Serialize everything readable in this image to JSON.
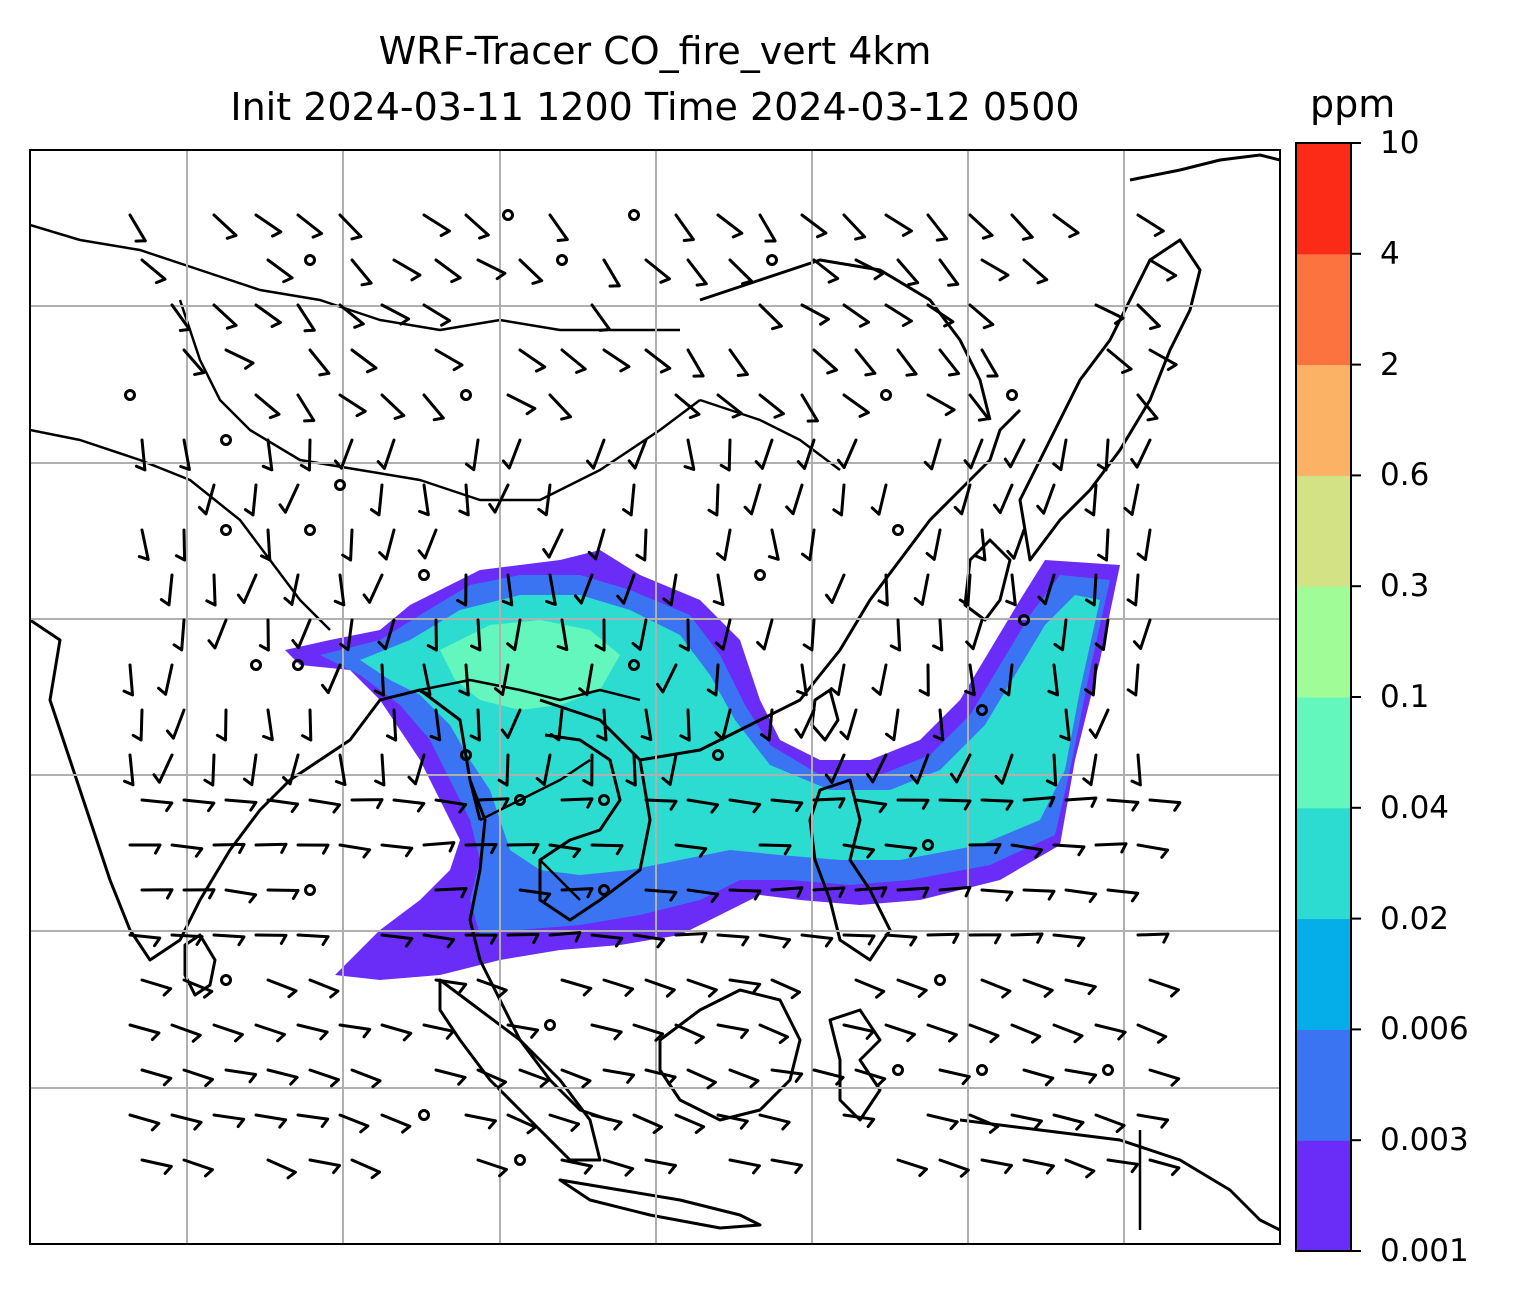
{
  "title_line1": "WRF-Tracer CO_fire_vert 4km",
  "title_line2": "Init 2024-03-11 1200 Time 2024-03-12 0500",
  "colorbar": {
    "unit": "ppm",
    "levels": [
      "0.001",
      "0.003",
      "0.006",
      "0.02",
      "0.04",
      "0.1",
      "0.3",
      "0.6",
      "2",
      "4",
      "10"
    ],
    "colors": [
      "#6a2cf7",
      "#3a74f2",
      "#05aee8",
      "#2ddcd0",
      "#63f7bd",
      "#9ffc96",
      "#d2e284",
      "#fcb265",
      "#fc7340",
      "#fb2b17"
    ]
  },
  "plume_colors": {
    "outer": "#6a2cf7",
    "mid": "#3a74f2",
    "inner": "#2ddcd0",
    "core": "#63f7bd"
  }
}
